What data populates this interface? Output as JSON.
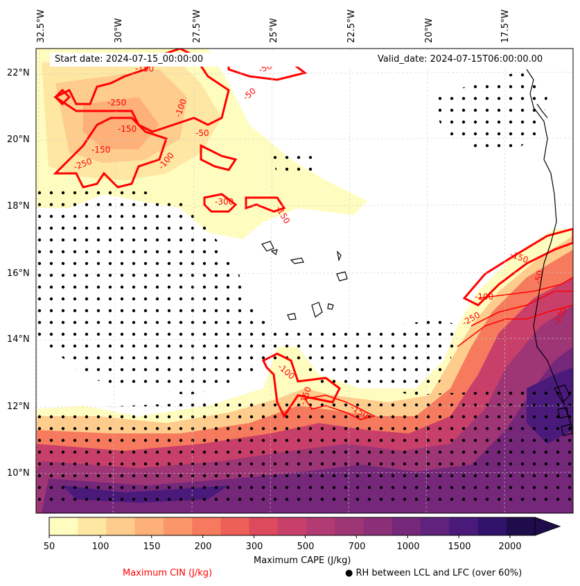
{
  "map": {
    "start_label": "Start date: 2024-07-15_00:00:00",
    "valid_label": "Valid_date: 2024-07-15T06:00:00.00",
    "longitudes": [
      "32.5°W",
      "30°W",
      "27.5°W",
      "25°W",
      "22.5°W",
      "20°W",
      "17.5°W"
    ],
    "latitudes": [
      "22°N",
      "20°N",
      "18°N",
      "16°N",
      "14°N",
      "12°N",
      "10°N"
    ],
    "cin_contour_labels": [
      "-250",
      "-150",
      "-50",
      "-100",
      "-50",
      "-150",
      "-300",
      "-250",
      "-100",
      "-150",
      "-100",
      "-150",
      "-50",
      "-250",
      "-100",
      "-150",
      "-150",
      "-50",
      "-100",
      "-150"
    ],
    "colors": {
      "cin_contour": "#ff0000",
      "rh_dots": "#000000",
      "coastline": "#000000",
      "gridlines": "#cccccc"
    }
  },
  "colorbar": {
    "title": "Maximum CAPE (J/kg)",
    "ticks": [
      "50",
      "100",
      "150",
      "200",
      "300",
      "500",
      "700",
      "1000",
      "1500",
      "2000"
    ],
    "extend": "max",
    "colors": [
      "#fffcbf",
      "#fee6a3",
      "#fecc8c",
      "#fdb078",
      "#fb966a",
      "#f67a5d",
      "#ec6057",
      "#dd4a5e",
      "#c8406a",
      "#b23b73",
      "#9e3575",
      "#8a2f78",
      "#75277a",
      "#60227c",
      "#4a1a7a",
      "#32136b",
      "#1f0c4b"
    ]
  },
  "legend": {
    "cin_label": "Maximum CIN (J/kg)",
    "rh_label": "● RH between LCL and LFC (over 60%)"
  }
}
